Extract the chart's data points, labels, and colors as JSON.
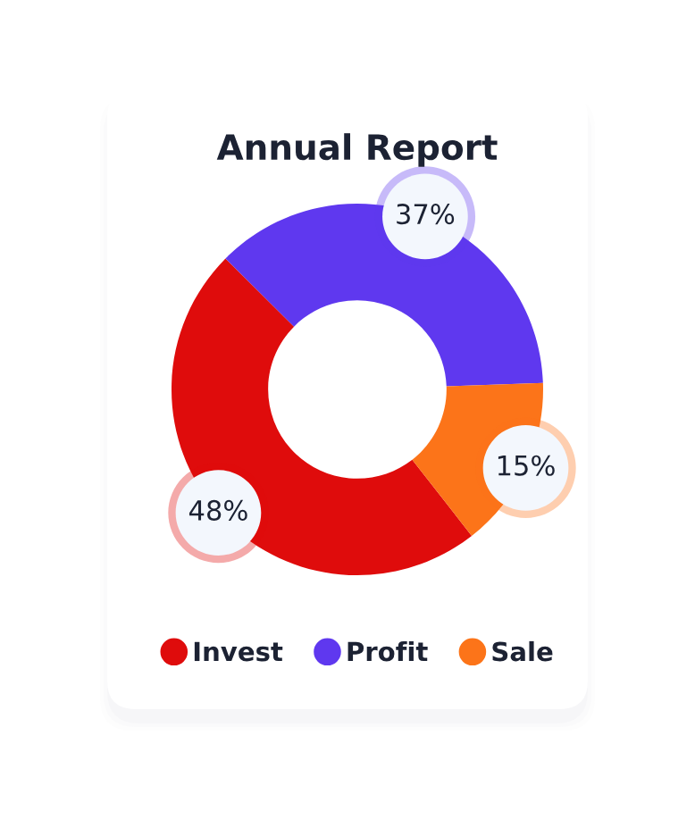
{
  "chart_data": {
    "type": "donut",
    "title": "Annual Report",
    "categories": [
      "Invest",
      "Profit",
      "Sale"
    ],
    "values": [
      48,
      37,
      15
    ],
    "colors": [
      "#df0c0c",
      "#5f38ef",
      "#fc7419"
    ],
    "value_labels": [
      "48%",
      "37%",
      "15%"
    ],
    "legend": "bottom"
  }
}
